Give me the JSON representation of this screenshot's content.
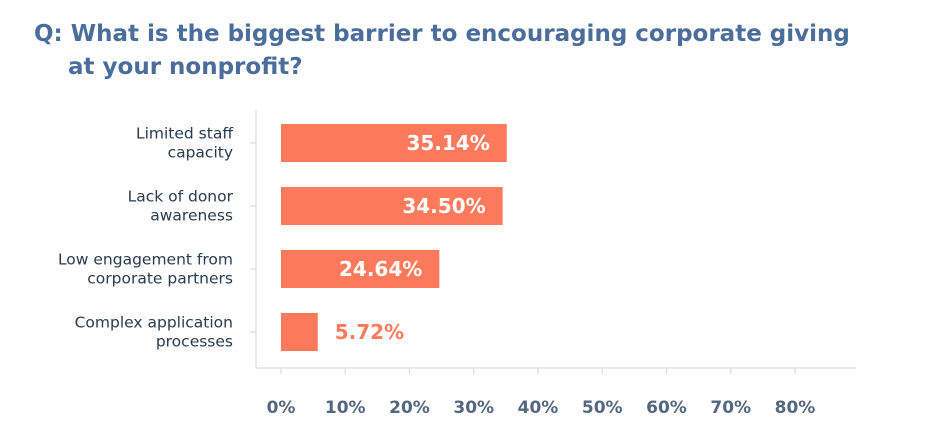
{
  "colors": {
    "title": "#4a6d9c",
    "bar": "#ff7a5c",
    "label_inside": "#ffffff",
    "label_outside": "#ff7a5c",
    "axis": "#d9dde3",
    "tick_text": "#55677e",
    "category_text": "#2b3a4e"
  },
  "chart_data": {
    "type": "bar",
    "orientation": "horizontal",
    "title": "Q: What is the biggest barrier to encouraging corporate giving at your nonprofit?",
    "title_lines": [
      "Q: What is the biggest barrier to encouraging corporate giving",
      "at your nonprofit?"
    ],
    "categories": [
      [
        "Limited staff",
        "capacity"
      ],
      [
        "Lack of donor",
        "awareness"
      ],
      [
        "Low engagement from",
        "corporate partners"
      ],
      [
        "Complex application",
        "processes"
      ]
    ],
    "values": [
      35.14,
      34.5,
      24.64,
      5.72
    ],
    "value_labels": [
      "35.14%",
      "34.50%",
      "24.64%",
      "5.72%"
    ],
    "xlim": [
      0,
      80
    ],
    "xticks": [
      0,
      10,
      20,
      30,
      40,
      50,
      60,
      70,
      80
    ],
    "xtick_labels": [
      "0%",
      "10%",
      "20%",
      "30%",
      "40%",
      "50%",
      "60%",
      "70%",
      "80%"
    ],
    "grid": false,
    "legend": "none"
  }
}
